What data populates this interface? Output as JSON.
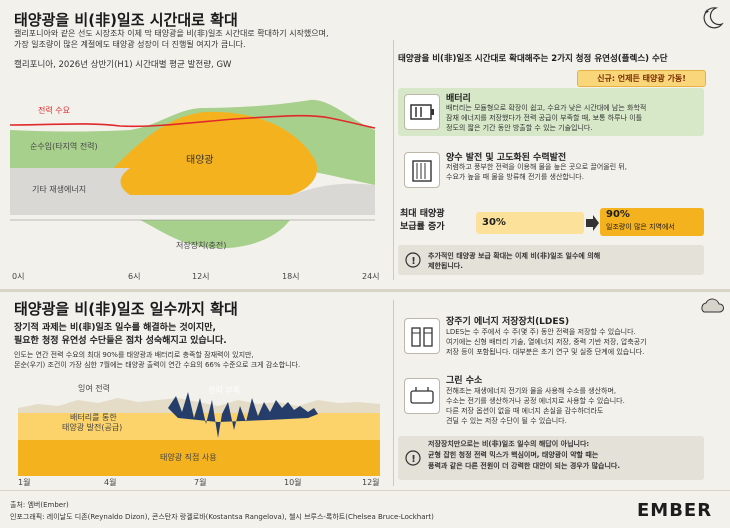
{
  "top": {
    "title": "태양광을 비(非)일조 시간대로 확대",
    "intro": [
      "캘리포니아와 같은 선도 시장조차 이제 막 태양광을 비(非)일조 시간대로 확대하기 시작했으며,",
      "가장 일조량이 많은 계절에도 태양광 성장이 더 진행될 여지가 큽니다."
    ],
    "chart_title": "캘리포니아, 2026년 상반기(H1) 시간대별 평균 발전량, GW"
  },
  "chart_data": [
    {
      "type": "area",
      "title": "캘리포니아, 2026년 상반기(H1) 시간대별 평균 발전량, GW",
      "x_ticks": [
        "0시",
        "6시",
        "12시",
        "18시",
        "24시"
      ],
      "series": [
        {
          "name": "전력 수요",
          "kind": "line",
          "color": "#e0292b"
        },
        {
          "name": "순수입(타지역 전력)",
          "color": "#a8d08d"
        },
        {
          "name": "태양광",
          "color": "#f5b21f"
        },
        {
          "name": "기타 재생에너지",
          "color": "#d9d8d4"
        },
        {
          "name": "저장장치(충전)",
          "color": "#a8d08d"
        }
      ]
    },
    {
      "type": "area",
      "title": "",
      "x_ticks": [
        "1월",
        "4월",
        "7월",
        "10월",
        "12월"
      ],
      "series": [
        {
          "name": "태양광 직접 사용",
          "color": "#f5b21f"
        },
        {
          "name": "배터리를 통한 태양광 발전(공급)",
          "color": "#fbd36a"
        },
        {
          "name": "잉여 전력",
          "color": "#e4dcc6"
        },
        {
          "name": "전력 부족",
          "color": "#243d6b"
        }
      ]
    }
  ],
  "labels": {
    "demand": "전력 수요",
    "imports": "순수입(타지역 전력)",
    "solar": "태양광",
    "other": "기타 재생에너지",
    "storage": "저장장치(충전)",
    "surplus": "잉여 전력",
    "shortage": "전력 부족",
    "battery_supply": "배터리를 통한\n태양광 발전(공급)",
    "battery_supply_1": "배터리를 통한",
    "battery_supply_2": "태양광 발전(공급)",
    "direct": "태양광 직접 사용"
  },
  "right_top": {
    "heading": "태양광을 비(非)일조 시간대로 확대해주는 2가지 청정 유연성(플렉스) 수단",
    "badge": "신규: 언제든 태양광 가동!",
    "battery": {
      "title": "배터리",
      "body": [
        "배터리는 모듈형으로 확장이 쉽고, 수요가 낮은 시간대에 남는 화학적",
        "잠재 에너지를 저장했다가 전력 공급이 부족할 때, 보통 하루나 이틀",
        "정도의 짧은 기간 동안 방출할 수 있는 기술입니다."
      ]
    },
    "hydro": {
      "title": "양수 발전 및 고도화된 수력발전",
      "body": [
        "저렴하고 풍부한 전력을 이용해 물을 높은 곳으로 끌어올린 뒤,",
        "수요가 높을 때 물을 방류해 전기를 생산합니다."
      ]
    },
    "growth": {
      "label_1": "최대 태양광",
      "label_2": "보급률 증가",
      "from": "30%",
      "to": "90%",
      "to_note": "일조량이 많은 지역에서"
    },
    "note": [
      "추가적인 태양광 보급 확대는 이제 비(非)일조 일수에 의해",
      "제한됩니다."
    ]
  },
  "bottom": {
    "title": "태양광을 비(非)일조 일수까지 확대",
    "lead": [
      "장기적 과제는 비(非)일조 일수를 해결하는 것이지만,",
      "필요한 청정 유연성 수단들은 점차 성숙해지고 있습니다."
    ],
    "body": [
      "인도는 연간 전력 수요의 최대 90%를 태양광과 배터리로 충족할 잠재력이 있지만,",
      "몬순(우기) 조건이 가장 심한 7월에는 태양광 출력이 연간 수요의 66% 수준으로 크게 감소합니다."
    ]
  },
  "right_bottom": {
    "ldes": {
      "title": "장주기 에너지 저장장치(LDES)",
      "body": [
        "LDES는 수 주에서 수 주(몇 주) 동안 전력을 저장할 수 있습니다.",
        "여기에는 신형 배터리 기술, 열에너지 저장, 중력 기반 저장, 압축공기",
        "저장 등이 포함됩니다. 대부분은 초기 연구 및 실증 단계에 있습니다."
      ]
    },
    "hydrogen": {
      "title": "그린 수소",
      "body": [
        "전해조는 재생에너지 전기와 물을 사용해 수소를 생산하며,",
        "수소는 전기를 생산하거나 공정 에너지로 사용할 수 있습니다.",
        "다른 저장 옵션이 없을 때 에너지 손실을 감수하더라도",
        "견딜 수 있는 저장 수단이 될 수 있습니다."
      ]
    },
    "note": [
      "저장장치만으로는 비(非)일조 일수의 해답이 아닙니다:",
      "균형 잡힌 청정 전력 믹스가 핵심이며, 태양광이 약할 때는",
      "풍력과 같은 다른 전원이 더 강력한 대안이 되는 경우가 많습니다."
    ]
  },
  "footer": {
    "source": "출처: 엠버(Ember)",
    "credits": "인포그래픽: 레이날도 디존(Reynaldo Dizon), 콘스탄자 랑겔로바(Kostantsa Rangelova), 첼시 브루스-록하트(Chelsea Bruce-Lockhart)",
    "logo": "EMBER"
  },
  "colors": {
    "solar": "#f5b21f",
    "imports": "#a8d08d",
    "other": "#d9d8d4",
    "demand": "#e0292b",
    "shortage": "#243d6b",
    "accent": "#f5b21f"
  }
}
